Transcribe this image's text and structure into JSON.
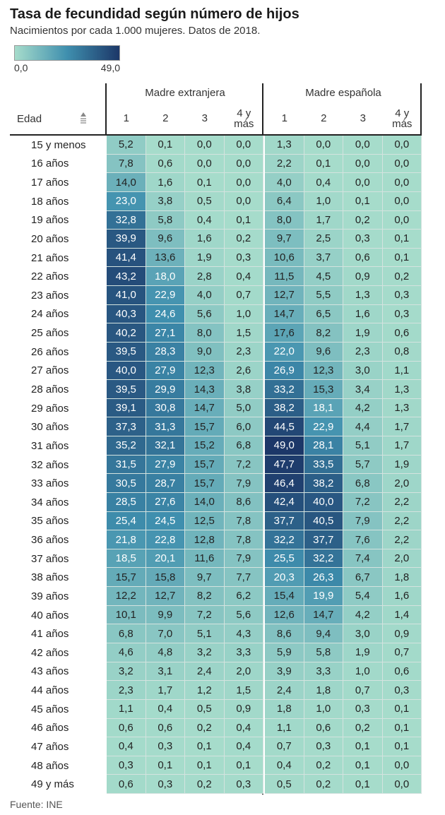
{
  "header": {
    "title": "Tasa de fecundidad según número de hijos",
    "subtitle": "Nacimientos por cada 1.000 mujeres. Datos de 2018."
  },
  "legend": {
    "min": "0,0",
    "max": "49,0"
  },
  "table": {
    "age_header": "Edad",
    "groups": [
      {
        "name": "Madre extranjera",
        "columns": [
          "1",
          "2",
          "3",
          "4 y más"
        ]
      },
      {
        "name": "Madre española",
        "columns": [
          "1",
          "2",
          "3",
          "4 y más"
        ]
      }
    ],
    "rows": [
      {
        "label": "15 y menos",
        "cells": [
          "5,2",
          "0,1",
          "0,0",
          "0,0",
          "1,3",
          "0,0",
          "0,0",
          "0,0"
        ]
      },
      {
        "label": "16 años",
        "cells": [
          "7,8",
          "0,6",
          "0,0",
          "0,0",
          "2,2",
          "0,1",
          "0,0",
          "0,0"
        ]
      },
      {
        "label": "17 años",
        "cells": [
          "14,0",
          "1,6",
          "0,1",
          "0,0",
          "4,0",
          "0,4",
          "0,0",
          "0,0"
        ]
      },
      {
        "label": "18 años",
        "cells": [
          "23,0",
          "3,8",
          "0,5",
          "0,0",
          "6,4",
          "1,0",
          "0,1",
          "0,0"
        ]
      },
      {
        "label": "19 años",
        "cells": [
          "32,8",
          "5,8",
          "0,4",
          "0,1",
          "8,0",
          "1,7",
          "0,2",
          "0,0"
        ]
      },
      {
        "label": "20 años",
        "cells": [
          "39,9",
          "9,6",
          "1,6",
          "0,2",
          "9,7",
          "2,5",
          "0,3",
          "0,1"
        ]
      },
      {
        "label": "21 años",
        "cells": [
          "41,4",
          "13,6",
          "1,9",
          "0,3",
          "10,6",
          "3,7",
          "0,6",
          "0,1"
        ]
      },
      {
        "label": "22 años",
        "cells": [
          "43,2",
          "18,0",
          "2,8",
          "0,4",
          "11,5",
          "4,5",
          "0,9",
          "0,2"
        ]
      },
      {
        "label": "23 años",
        "cells": [
          "41,0",
          "22,9",
          "4,0",
          "0,7",
          "12,7",
          "5,5",
          "1,3",
          "0,3"
        ]
      },
      {
        "label": "24 años",
        "cells": [
          "40,3",
          "24,6",
          "5,6",
          "1,0",
          "14,7",
          "6,5",
          "1,6",
          "0,3"
        ]
      },
      {
        "label": "25 años",
        "cells": [
          "40,2",
          "27,1",
          "8,0",
          "1,5",
          "17,6",
          "8,2",
          "1,9",
          "0,6"
        ]
      },
      {
        "label": "26 años",
        "cells": [
          "39,5",
          "28,3",
          "9,0",
          "2,3",
          "22,0",
          "9,6",
          "2,3",
          "0,8"
        ]
      },
      {
        "label": "27 años",
        "cells": [
          "40,0",
          "27,9",
          "12,3",
          "2,6",
          "26,9",
          "12,3",
          "3,0",
          "1,1"
        ]
      },
      {
        "label": "28 años",
        "cells": [
          "39,5",
          "29,9",
          "14,3",
          "3,8",
          "33,2",
          "15,3",
          "3,4",
          "1,3"
        ]
      },
      {
        "label": "29 años",
        "cells": [
          "39,1",
          "30,8",
          "14,7",
          "5,0",
          "38,2",
          "18,1",
          "4,2",
          "1,3"
        ]
      },
      {
        "label": "30 años",
        "cells": [
          "37,3",
          "31,3",
          "15,7",
          "6,0",
          "44,5",
          "22,9",
          "4,4",
          "1,7"
        ]
      },
      {
        "label": "31 años",
        "cells": [
          "35,2",
          "32,1",
          "15,2",
          "6,8",
          "49,0",
          "28,1",
          "5,1",
          "1,7"
        ]
      },
      {
        "label": "32 años",
        "cells": [
          "31,5",
          "27,9",
          "15,7",
          "7,2",
          "47,7",
          "33,5",
          "5,7",
          "1,9"
        ]
      },
      {
        "label": "33 años",
        "cells": [
          "30,5",
          "28,7",
          "15,7",
          "7,9",
          "46,4",
          "38,2",
          "6,8",
          "2,0"
        ]
      },
      {
        "label": "34 años",
        "cells": [
          "28,5",
          "27,6",
          "14,0",
          "8,6",
          "42,4",
          "40,0",
          "7,2",
          "2,2"
        ]
      },
      {
        "label": "35 años",
        "cells": [
          "25,4",
          "24,5",
          "12,5",
          "7,8",
          "37,7",
          "40,5",
          "7,9",
          "2,2"
        ]
      },
      {
        "label": "36 años",
        "cells": [
          "21,8",
          "22,8",
          "12,8",
          "7,8",
          "32,2",
          "37,7",
          "7,6",
          "2,2"
        ]
      },
      {
        "label": "37 años",
        "cells": [
          "18,5",
          "20,1",
          "11,6",
          "7,9",
          "25,5",
          "32,2",
          "7,4",
          "2,0"
        ]
      },
      {
        "label": "38 años",
        "cells": [
          "15,7",
          "15,8",
          "9,7",
          "7,7",
          "20,3",
          "26,3",
          "6,7",
          "1,8"
        ]
      },
      {
        "label": "39 años",
        "cells": [
          "12,2",
          "12,7",
          "8,2",
          "6,2",
          "15,4",
          "19,9",
          "5,4",
          "1,6"
        ]
      },
      {
        "label": "40 años",
        "cells": [
          "10,1",
          "9,9",
          "7,2",
          "5,6",
          "12,6",
          "14,7",
          "4,2",
          "1,4"
        ]
      },
      {
        "label": "41 años",
        "cells": [
          "6,8",
          "7,0",
          "5,1",
          "4,3",
          "8,6",
          "9,4",
          "3,0",
          "0,9"
        ]
      },
      {
        "label": "42 años",
        "cells": [
          "4,6",
          "4,8",
          "3,2",
          "3,3",
          "5,9",
          "5,8",
          "1,9",
          "0,7"
        ]
      },
      {
        "label": "43 años",
        "cells": [
          "3,2",
          "3,1",
          "2,4",
          "2,0",
          "3,9",
          "3,3",
          "1,0",
          "0,6"
        ]
      },
      {
        "label": "44 años",
        "cells": [
          "2,3",
          "1,7",
          "1,2",
          "1,5",
          "2,4",
          "1,8",
          "0,7",
          "0,3"
        ]
      },
      {
        "label": "45 años",
        "cells": [
          "1,1",
          "0,4",
          "0,5",
          "0,9",
          "1,8",
          "1,0",
          "0,3",
          "0,1"
        ]
      },
      {
        "label": "46 años",
        "cells": [
          "0,6",
          "0,6",
          "0,2",
          "0,4",
          "1,1",
          "0,6",
          "0,2",
          "0,1"
        ]
      },
      {
        "label": "47 años",
        "cells": [
          "0,4",
          "0,3",
          "0,1",
          "0,4",
          "0,7",
          "0,3",
          "0,1",
          "0,1"
        ]
      },
      {
        "label": "48 años",
        "cells": [
          "0,3",
          "0,1",
          "0,1",
          "0,1",
          "0,4",
          "0,2",
          "0,1",
          "0,0"
        ]
      },
      {
        "label": "49 y más",
        "cells": [
          "0,6",
          "0,3",
          "0,2",
          "0,3",
          "0,5",
          "0,2",
          "0,1",
          "0,0"
        ]
      }
    ]
  },
  "footer": {
    "source": "Fuente: INE"
  }
}
